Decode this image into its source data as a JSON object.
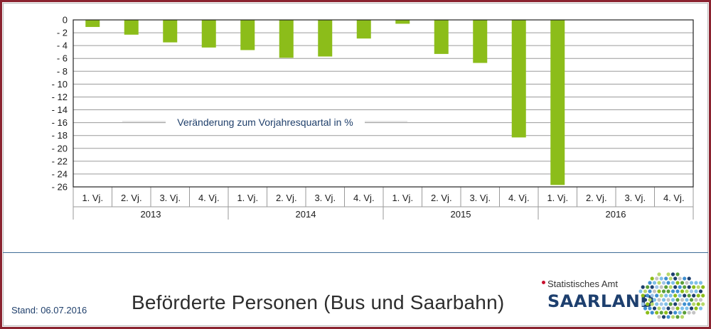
{
  "chart_data": {
    "type": "bar",
    "title": "Beförderte Personen (Bus und Saarbahn)",
    "annotation": "Veränderung zum Vorjahresquartal in %",
    "ylim": [
      -26,
      0
    ],
    "yticks": [
      0,
      -2,
      -4,
      -6,
      -8,
      -10,
      -12,
      -14,
      -16,
      -18,
      -20,
      -22,
      -24,
      -26
    ],
    "ytick_labels": [
      "0",
      "- 2",
      "- 4",
      "- 6",
      "- 8",
      "- 10",
      "- 12",
      "- 14",
      "- 16",
      "- 18",
      "- 20",
      "- 22",
      "- 24",
      "- 26"
    ],
    "grid": true,
    "bar_color": "#8cbd1a",
    "years": [
      "2013",
      "2014",
      "2015",
      "2016"
    ],
    "categories": [
      "1. Vj.",
      "2. Vj.",
      "3. Vj.",
      "4. Vj.",
      "1. Vj.",
      "2. Vj.",
      "3. Vj.",
      "4. Vj.",
      "1. Vj.",
      "2. Vj.",
      "3. Vj.",
      "4. Vj.",
      "1. Vj.",
      "2. Vj.",
      "3. Vj.",
      "4. Vj."
    ],
    "values": [
      -1.1,
      -2.3,
      -3.5,
      -4.3,
      -4.7,
      -5.9,
      -5.7,
      -2.9,
      -0.6,
      -5.3,
      -6.7,
      -18.3,
      -25.7,
      null,
      null,
      null
    ]
  },
  "footer": {
    "stand": "Stand: 06.07.2016",
    "title": "Beförderte Personen (Bus und Saarbahn)"
  },
  "logo": {
    "subtitle": "Statistisches Amt",
    "name": "SAARLAND"
  },
  "colors": {
    "frame": "#8b2330",
    "separator": "#3f6d96",
    "brand": "#1d3f6e"
  }
}
